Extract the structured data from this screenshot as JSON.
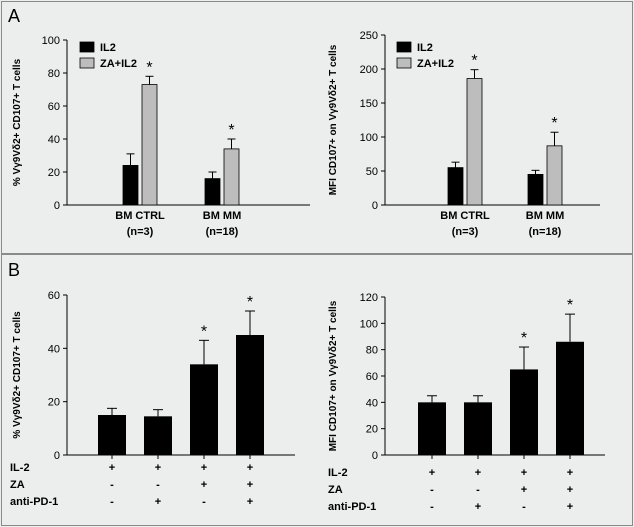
{
  "panels": {
    "a": "A",
    "b": "B"
  },
  "chart_data": [
    {
      "id": "A1",
      "type": "bar",
      "ylabel": "% Vγ9Vδ2+ CD107+ T cells",
      "ylim": [
        0,
        100
      ],
      "yticks": [
        0,
        20,
        40,
        60,
        80,
        100
      ],
      "categories": [
        [
          "BM CTRL",
          "(n=3)"
        ],
        [
          "BM MM",
          "(n=18)"
        ]
      ],
      "series": [
        {
          "name": "IL2",
          "color": "#000000",
          "values": [
            24,
            16
          ],
          "errors": [
            7,
            4
          ],
          "stars": [
            false,
            false
          ]
        },
        {
          "name": "ZA+IL2",
          "color": "#bdbdbd",
          "values": [
            73,
            34
          ],
          "errors": [
            5,
            6
          ],
          "stars": [
            true,
            true
          ]
        }
      ],
      "star_symbol": "*"
    },
    {
      "id": "A2",
      "type": "bar",
      "ylabel": "MFI CD107+ on Vγ9Vδ2+ T cells",
      "ylim": [
        0,
        250
      ],
      "yticks": [
        0,
        50,
        100,
        150,
        200,
        250
      ],
      "categories": [
        [
          "BM CTRL",
          "(n=3)"
        ],
        [
          "BM MM",
          "(n=18)"
        ]
      ],
      "series": [
        {
          "name": "IL2",
          "color": "#000000",
          "values": [
            55,
            45
          ],
          "errors": [
            8,
            6
          ],
          "stars": [
            false,
            false
          ]
        },
        {
          "name": "ZA+IL2",
          "color": "#bdbdbd",
          "values": [
            186,
            87
          ],
          "errors": [
            13,
            20
          ],
          "stars": [
            true,
            true
          ]
        }
      ],
      "star_symbol": "*"
    },
    {
      "id": "B1",
      "type": "bar",
      "ylabel": "% Vγ9Vδ2+ CD107+ T cells",
      "ylim": [
        0,
        60
      ],
      "yticks": [
        0,
        20,
        40,
        60
      ],
      "values": [
        15,
        14.5,
        34,
        45
      ],
      "errors": [
        2.5,
        2.5,
        9,
        9
      ],
      "stars": [
        false,
        false,
        true,
        true
      ],
      "star_symbol": "*",
      "conditions": [
        {
          "name": "IL-2",
          "marks": [
            "+",
            "+",
            "+",
            "+"
          ]
        },
        {
          "name": "ZA",
          "marks": [
            "-",
            "-",
            "+",
            "+"
          ]
        },
        {
          "name": "anti-PD-1",
          "marks": [
            "-",
            "+",
            "-",
            "+"
          ]
        }
      ]
    },
    {
      "id": "B2",
      "type": "bar",
      "ylabel": "MFI CD107+ on Vγ9Vδ2+ T cells",
      "ylim": [
        0,
        120
      ],
      "yticks": [
        0,
        20,
        40,
        60,
        80,
        100,
        120
      ],
      "values": [
        40,
        40,
        65,
        86
      ],
      "errors": [
        5,
        5,
        17,
        21
      ],
      "stars": [
        false,
        false,
        true,
        true
      ],
      "star_symbol": "*",
      "conditions": [
        {
          "name": "IL-2",
          "marks": [
            "+",
            "+",
            "+",
            "+"
          ]
        },
        {
          "name": "ZA",
          "marks": [
            "-",
            "-",
            "+",
            "+"
          ]
        },
        {
          "name": "anti-PD-1",
          "marks": [
            "-",
            "+",
            "-",
            "+"
          ]
        }
      ]
    }
  ]
}
